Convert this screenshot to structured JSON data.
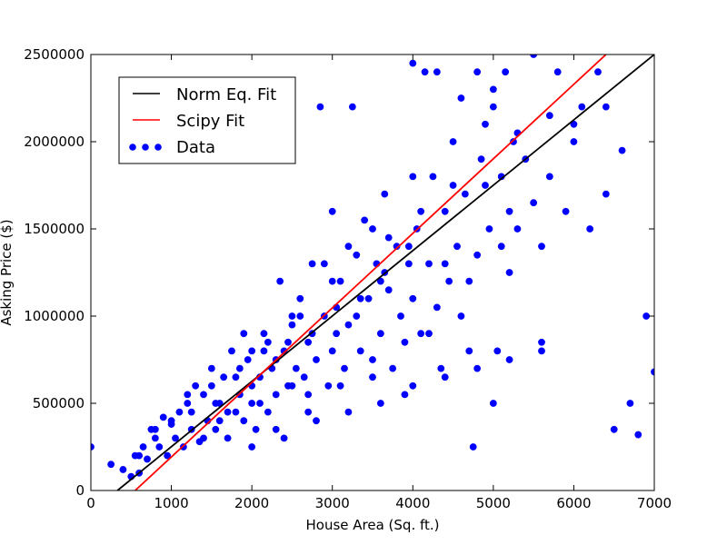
{
  "chart_data": {
    "type": "scatter",
    "title": "",
    "xlabel": "House Area (Sq. ft.)",
    "ylabel": "Asking Price ($)",
    "xlim": [
      0,
      7000
    ],
    "ylim": [
      0,
      2500000
    ],
    "xticks": [
      0,
      1000,
      2000,
      3000,
      4000,
      5000,
      6000,
      7000
    ],
    "yticks": [
      0,
      500000,
      1000000,
      1500000,
      2000000,
      2500000
    ],
    "grid": false,
    "legend_position": "top-left",
    "legend": [
      {
        "label": "Norm Eq. Fit",
        "kind": "line",
        "color": "#000000"
      },
      {
        "label": "Scipy Fit",
        "kind": "line",
        "color": "#ff0000"
      },
      {
        "label": "Data",
        "kind": "marker",
        "color": "#0000ff"
      }
    ],
    "lines": [
      {
        "name": "Norm Eq. Fit",
        "color": "#000000",
        "x": [
          330,
          7000
        ],
        "y": [
          0,
          2500000
        ]
      },
      {
        "name": "Scipy Fit",
        "color": "#ff0000",
        "x": [
          550,
          6400
        ],
        "y": [
          0,
          2500000
        ]
      }
    ],
    "series": [
      {
        "name": "Data",
        "color": "#0000ff",
        "points": [
          [
            0,
            250000
          ],
          [
            250,
            150000
          ],
          [
            400,
            120000
          ],
          [
            500,
            80000
          ],
          [
            550,
            200000
          ],
          [
            600,
            100000
          ],
          [
            650,
            250000
          ],
          [
            700,
            180000
          ],
          [
            750,
            350000
          ],
          [
            800,
            300000
          ],
          [
            850,
            250000
          ],
          [
            900,
            420000
          ],
          [
            950,
            200000
          ],
          [
            1000,
            380000
          ],
          [
            1050,
            300000
          ],
          [
            1100,
            450000
          ],
          [
            1150,
            250000
          ],
          [
            1200,
            500000
          ],
          [
            1250,
            350000
          ],
          [
            1300,
            600000
          ],
          [
            1350,
            280000
          ],
          [
            1400,
            550000
          ],
          [
            1450,
            400000
          ],
          [
            1500,
            700000
          ],
          [
            1550,
            350000
          ],
          [
            1600,
            500000
          ],
          [
            1650,
            650000
          ],
          [
            1700,
            300000
          ],
          [
            1750,
            800000
          ],
          [
            1800,
            450000
          ],
          [
            1850,
            550000
          ],
          [
            1900,
            400000
          ],
          [
            1950,
            750000
          ],
          [
            2000,
            500000
          ],
          [
            2050,
            350000
          ],
          [
            2100,
            650000
          ],
          [
            2150,
            900000
          ],
          [
            2200,
            450000
          ],
          [
            2250,
            700000
          ],
          [
            2300,
            550000
          ],
          [
            2350,
            1200000
          ],
          [
            2400,
            800000
          ],
          [
            2450,
            600000
          ],
          [
            2500,
            950000
          ],
          [
            2550,
            700000
          ],
          [
            2600,
            1100000
          ],
          [
            2650,
            650000
          ],
          [
            2700,
            850000
          ],
          [
            2750,
            1300000
          ],
          [
            2800,
            750000
          ],
          [
            2850,
            2200000
          ],
          [
            2900,
            1000000
          ],
          [
            2950,
            600000
          ],
          [
            3000,
            1600000
          ],
          [
            3050,
            900000
          ],
          [
            3100,
            1200000
          ],
          [
            3150,
            700000
          ],
          [
            3200,
            1400000
          ],
          [
            3250,
            2200000
          ],
          [
            3300,
            1000000
          ],
          [
            3350,
            800000
          ],
          [
            3400,
            1550000
          ],
          [
            3450,
            1100000
          ],
          [
            3500,
            650000
          ],
          [
            3550,
            1300000
          ],
          [
            3600,
            900000
          ],
          [
            3650,
            1700000
          ],
          [
            3700,
            1150000
          ],
          [
            3750,
            700000
          ],
          [
            3800,
            1400000
          ],
          [
            3850,
            1000000
          ],
          [
            3900,
            550000
          ],
          [
            3950,
            1300000
          ],
          [
            4000,
            2450000
          ],
          [
            4050,
            1500000
          ],
          [
            4100,
            900000
          ],
          [
            4150,
            2400000
          ],
          [
            4200,
            1300000
          ],
          [
            4250,
            1800000
          ],
          [
            4300,
            2400000
          ],
          [
            4350,
            700000
          ],
          [
            4400,
            1600000
          ],
          [
            4450,
            1200000
          ],
          [
            4500,
            2000000
          ],
          [
            4550,
            1400000
          ],
          [
            4600,
            2250000
          ],
          [
            4650,
            1700000
          ],
          [
            4700,
            800000
          ],
          [
            4750,
            250000
          ],
          [
            4800,
            2400000
          ],
          [
            4850,
            1900000
          ],
          [
            4900,
            2100000
          ],
          [
            4950,
            1500000
          ],
          [
            5000,
            2300000
          ],
          [
            5050,
            800000
          ],
          [
            5100,
            1800000
          ],
          [
            5150,
            2400000
          ],
          [
            5200,
            1250000
          ],
          [
            5250,
            2000000
          ],
          [
            5300,
            1500000
          ],
          [
            5400,
            1900000
          ],
          [
            5500,
            2500000
          ],
          [
            5600,
            850000
          ],
          [
            5700,
            1800000
          ],
          [
            5800,
            2400000
          ],
          [
            5900,
            1600000
          ],
          [
            6000,
            2000000
          ],
          [
            6100,
            2200000
          ],
          [
            6200,
            1500000
          ],
          [
            6300,
            2400000
          ],
          [
            6400,
            1700000
          ],
          [
            6500,
            350000
          ],
          [
            6600,
            1950000
          ],
          [
            6700,
            500000
          ],
          [
            6800,
            320000
          ],
          [
            6900,
            1000000
          ],
          [
            7000,
            680000
          ],
          [
            2000,
            600000
          ],
          [
            1200,
            550000
          ],
          [
            1600,
            400000
          ],
          [
            1800,
            650000
          ],
          [
            2100,
            500000
          ],
          [
            2300,
            750000
          ],
          [
            1400,
            300000
          ],
          [
            1700,
            450000
          ],
          [
            2500,
            600000
          ],
          [
            2700,
            550000
          ],
          [
            3000,
            800000
          ],
          [
            3200,
            950000
          ],
          [
            3600,
            1200000
          ],
          [
            4000,
            1100000
          ],
          [
            4200,
            900000
          ],
          [
            4400,
            1300000
          ],
          [
            4600,
            1000000
          ],
          [
            4800,
            1350000
          ],
          [
            5000,
            500000
          ],
          [
            5200,
            1600000
          ],
          [
            5600,
            1400000
          ],
          [
            6000,
            2100000
          ],
          [
            6400,
            2200000
          ],
          [
            2200,
            850000
          ],
          [
            2600,
            1000000
          ],
          [
            2900,
            1300000
          ],
          [
            3300,
            1350000
          ],
          [
            3700,
            1450000
          ],
          [
            4100,
            1600000
          ],
          [
            4500,
            1750000
          ],
          [
            4900,
            1750000
          ],
          [
            5300,
            2050000
          ],
          [
            5700,
            2150000
          ],
          [
            5000,
            2200000
          ],
          [
            4000,
            1800000
          ],
          [
            3500,
            1500000
          ],
          [
            3000,
            1200000
          ],
          [
            2500,
            1000000
          ],
          [
            2000,
            800000
          ],
          [
            1500,
            600000
          ],
          [
            1000,
            400000
          ],
          [
            800,
            350000
          ],
          [
            600,
            200000
          ],
          [
            1250,
            450000
          ],
          [
            1550,
            500000
          ],
          [
            1850,
            700000
          ],
          [
            2150,
            800000
          ],
          [
            2450,
            850000
          ],
          [
            2750,
            900000
          ],
          [
            3050,
            1050000
          ],
          [
            3350,
            1100000
          ],
          [
            3650,
            1250000
          ],
          [
            3950,
            1400000
          ],
          [
            1900,
            900000
          ],
          [
            2300,
            350000
          ],
          [
            2700,
            450000
          ],
          [
            3100,
            600000
          ],
          [
            3500,
            750000
          ],
          [
            3900,
            850000
          ],
          [
            4300,
            1050000
          ],
          [
            4700,
            1200000
          ],
          [
            5100,
            1400000
          ],
          [
            5500,
            1650000
          ],
          [
            2000,
            250000
          ],
          [
            2400,
            300000
          ],
          [
            2800,
            400000
          ],
          [
            3200,
            450000
          ],
          [
            3600,
            500000
          ],
          [
            4000,
            600000
          ],
          [
            4400,
            650000
          ],
          [
            4800,
            700000
          ],
          [
            5200,
            750000
          ],
          [
            5600,
            800000
          ]
        ]
      }
    ]
  }
}
